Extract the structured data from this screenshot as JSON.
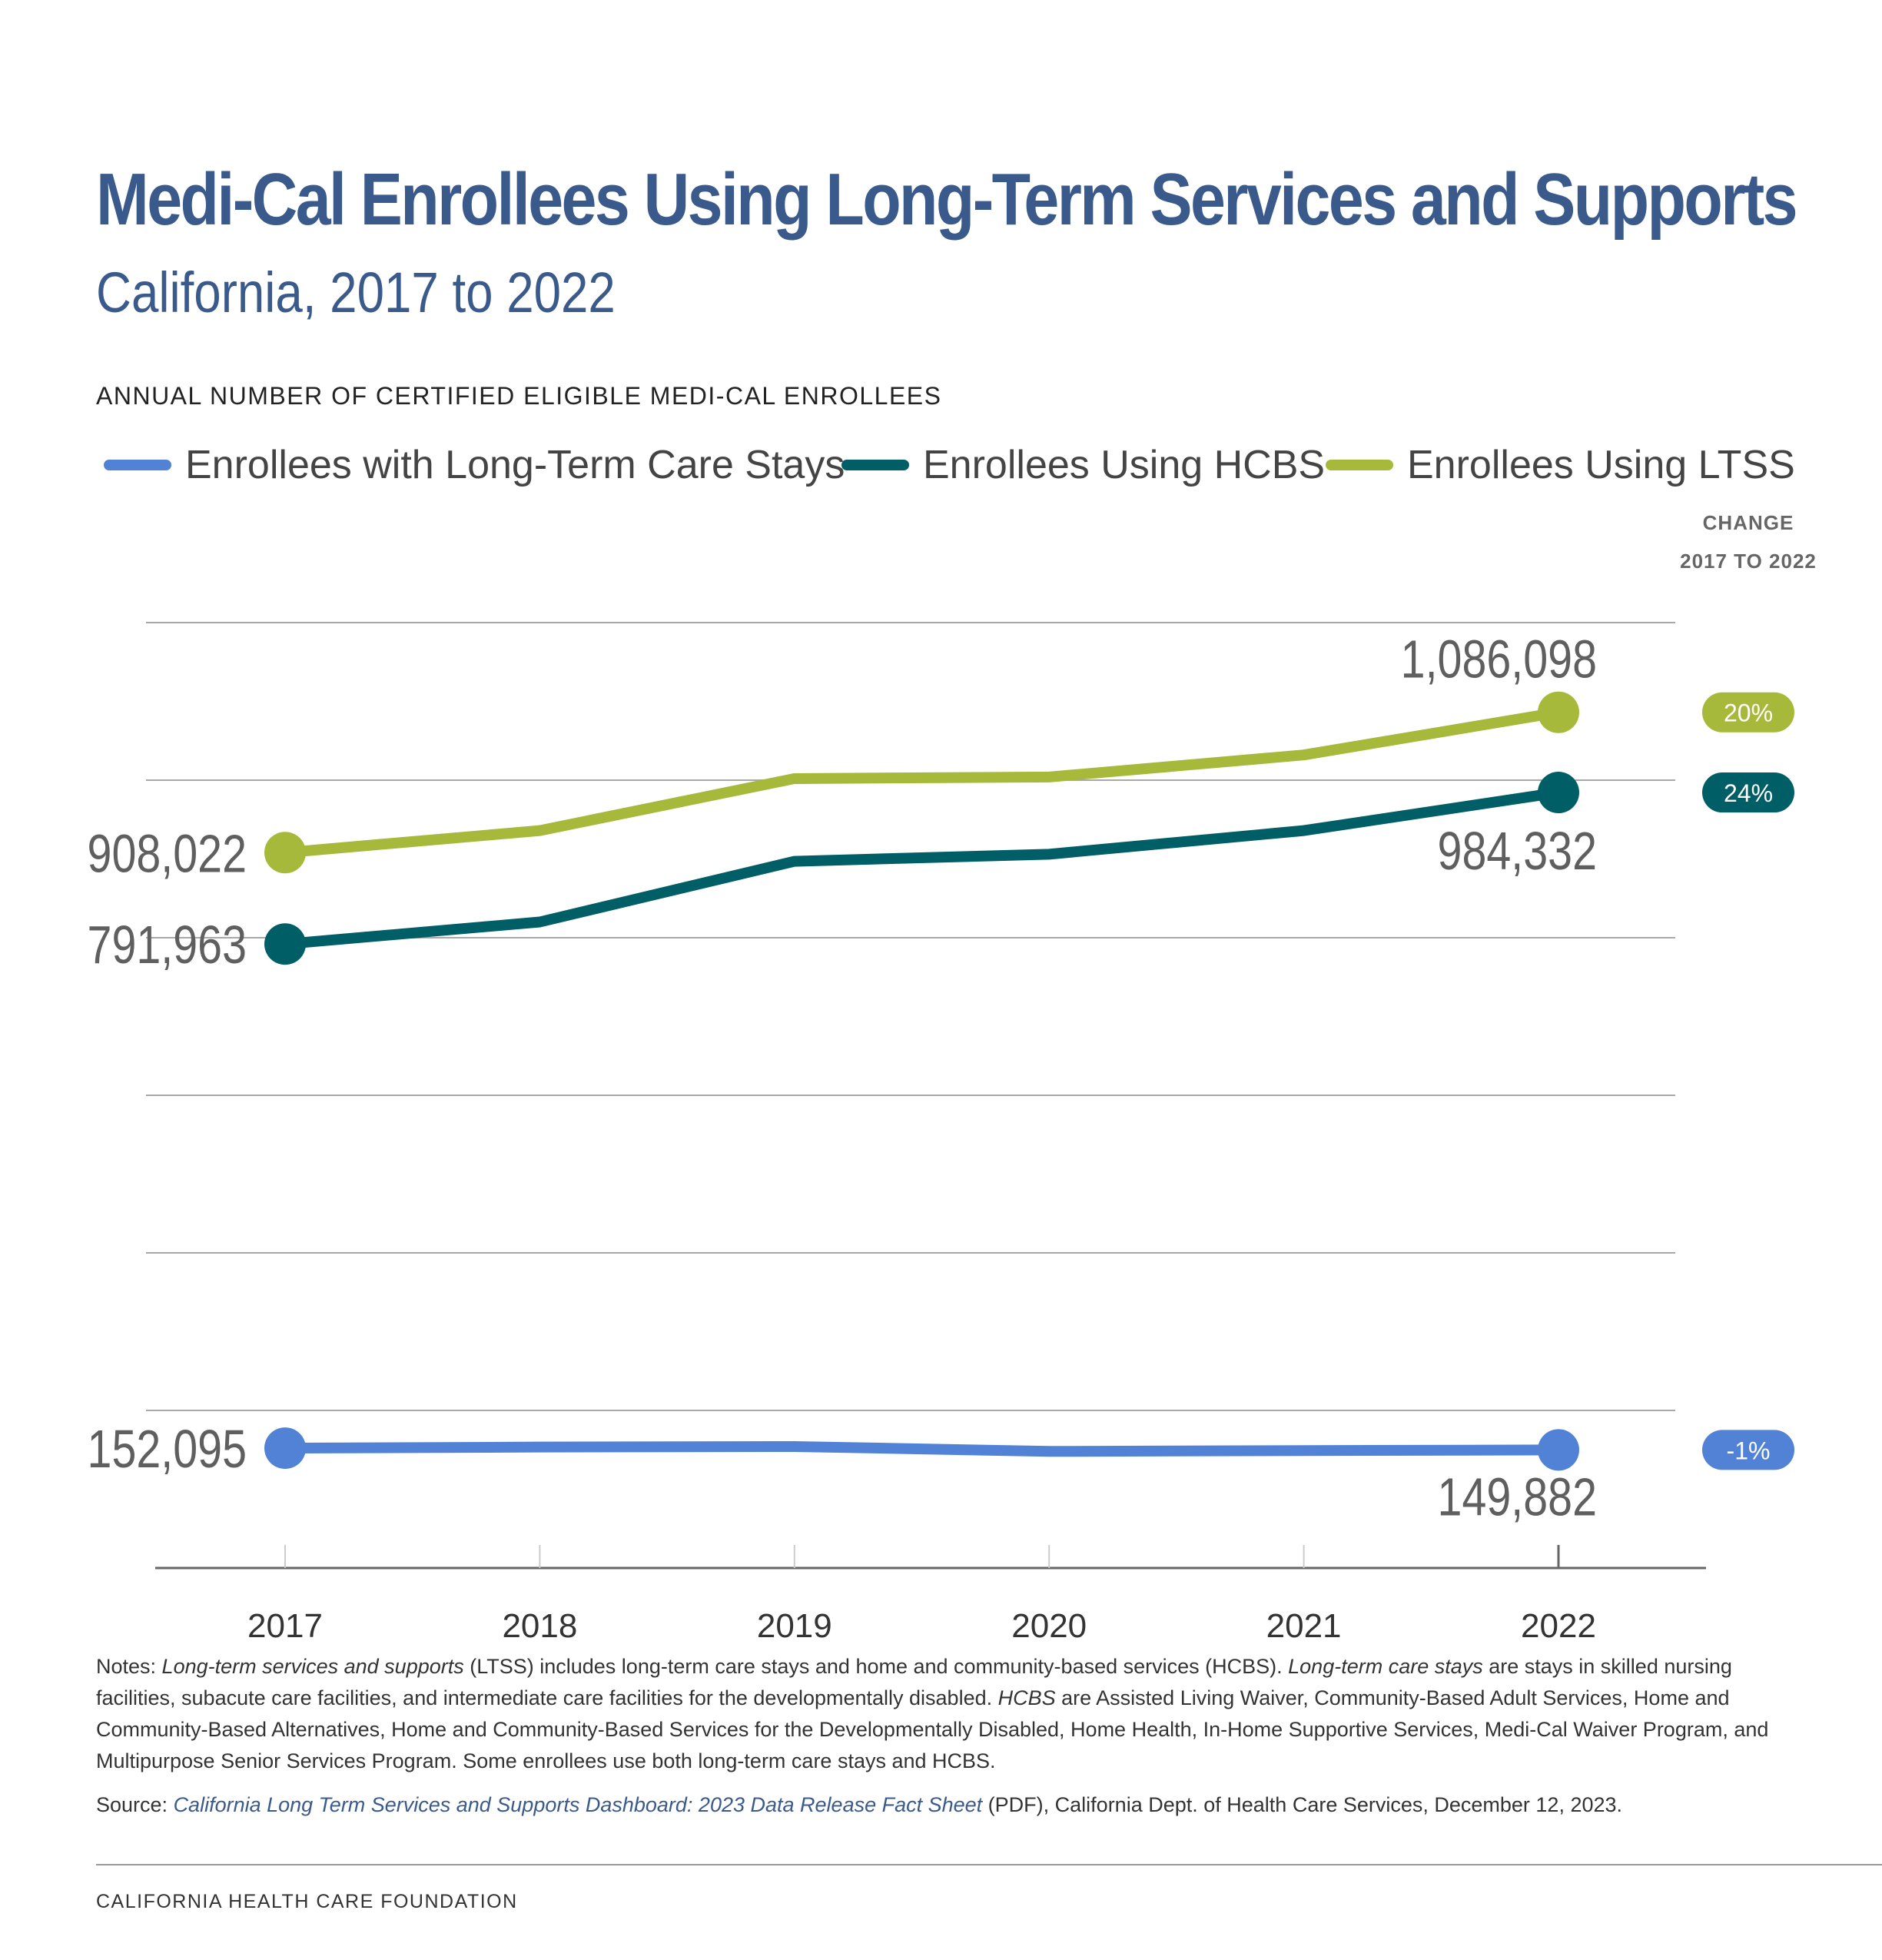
{
  "title": "Medi-Cal Enrollees Using Long-Term Services and Supports",
  "subtitle": "California, 2017 to 2022",
  "chart_heading": "ANNUAL NUMBER OF CERTIFIED ELIGIBLE MEDI-CAL ENROLLEES",
  "change_header": {
    "line1": "CHANGE",
    "line2": "2017 TO 2022"
  },
  "chart_data": {
    "type": "line",
    "x": [
      "2017",
      "2018",
      "2019",
      "2020",
      "2021",
      "2022"
    ],
    "series": [
      {
        "name": "Enrollees with Long-Term Care Stays",
        "color": "#5282d6",
        "values": [
          152095,
          153500,
          154200,
          148000,
          149000,
          149882
        ],
        "start_label": "152,095",
        "end_label": "149,882",
        "change": "-1%"
      },
      {
        "name": "Enrollees Using HCBS",
        "color": "#005f66",
        "values": [
          791963,
          820000,
          897000,
          906000,
          936000,
          984332
        ],
        "start_label": "791,963",
        "end_label": "984,332",
        "change": "24%"
      },
      {
        "name": "Enrollees Using LTSS",
        "color": "#a7b93a",
        "values": [
          908022,
          936000,
          1002000,
          1004000,
          1032000,
          1086098
        ],
        "start_label": "908,022",
        "end_label": "1,086,098",
        "change": "20%"
      }
    ],
    "ylim": [
      0,
      1200000
    ],
    "grid": true,
    "legend_position": "top"
  },
  "notes": {
    "prefix": "Notes: ",
    "ltss_term": "Long-term services and supports",
    "ltss_text": " (LTSS) includes long-term care stays and home and community-based services (HCBS). ",
    "ltc_term": "Long-term care stays",
    "ltc_text": " are stays in skilled nursing facilities, subacute care facilities, and intermediate care facilities for the developmentally disabled. ",
    "hcbs_term": "HCBS",
    "hcbs_text": " are Assisted Living Waiver, Community-Based Adult Services, Home and Community-Based Alternatives, Home and Community-Based Services for the Developmentally Disabled, Home Health, In-Home Supportive Services, Medi-Cal Waiver Program, and Multipurpose Senior Services Program. Some enrollees use both long-term care stays and HCBS."
  },
  "source": {
    "prefix": "Source: ",
    "link_text": "California Long Term Services and Supports Dashboard: 2023 Data Release Fact Sheet",
    "suffix": " (PDF), California Dept. of Health Care Services, December 12, 2023."
  },
  "footer": "CALIFORNIA HEALTH CARE FOUNDATION"
}
